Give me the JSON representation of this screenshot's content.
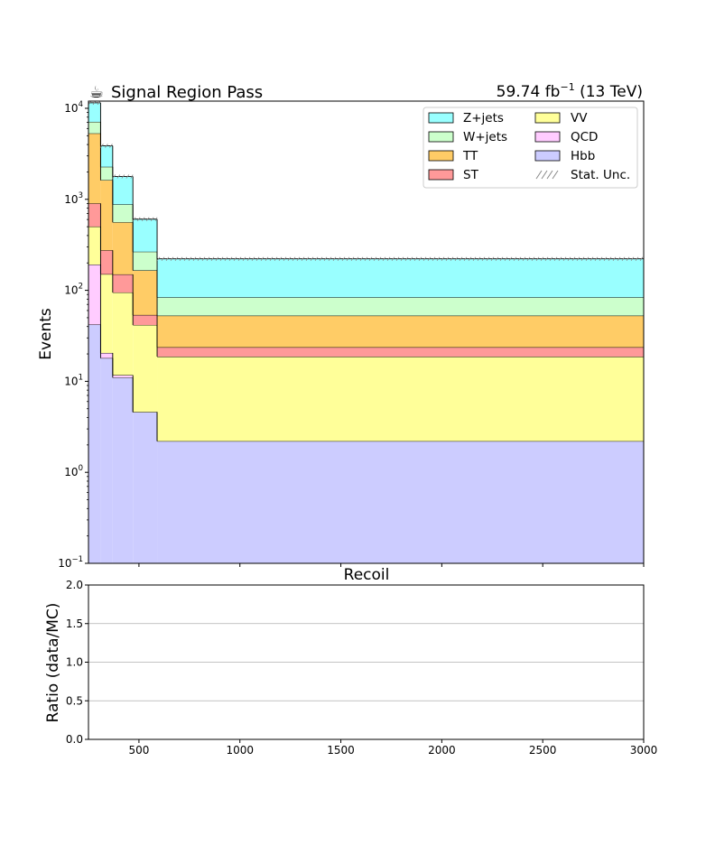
{
  "chart_data": [
    {
      "type": "area",
      "title": "Signal Region Pass",
      "lumi": {
        "value": "59.74 fb",
        "exp": "−1",
        "energy": "(13 TeV)"
      },
      "ylabel": "Events",
      "xlabel": "Recoil",
      "yscale": "log",
      "ylim": [
        0.1,
        12000
      ],
      "xlim": [
        250,
        3000
      ],
      "ytick_labels": [
        {
          "value": 0.1,
          "base": "10",
          "exp": "−1"
        },
        {
          "value": 1,
          "base": "10",
          "exp": "0"
        },
        {
          "value": 10,
          "base": "10",
          "exp": "1"
        },
        {
          "value": 100,
          "base": "10",
          "exp": "2"
        },
        {
          "value": 1000,
          "base": "10",
          "exp": "3"
        },
        {
          "value": 10000,
          "base": "10",
          "exp": "4"
        }
      ],
      "bin_edges": [
        250,
        310,
        370,
        470,
        590,
        3000
      ],
      "series": [
        {
          "name": "Hbb",
          "color": "#ccccff",
          "values": [
            42,
            18,
            11,
            4.6,
            2.2
          ]
        },
        {
          "name": "QCD",
          "color": "#ffccff",
          "values": [
            150,
            2.5,
            0.7,
            0.0,
            0.0
          ]
        },
        {
          "name": "VV",
          "color": "#ffff99",
          "values": [
            310,
            130,
            83,
            37,
            16.5
          ]
        },
        {
          "name": "ST",
          "color": "#ff9999",
          "values": [
            400,
            125,
            55,
            12,
            5
          ]
        },
        {
          "name": "TT",
          "color": "#ffcc66",
          "values": [
            4400,
            1350,
            410,
            112,
            29
          ]
        },
        {
          "name": "W+jets",
          "color": "#ccffcc",
          "values": [
            1800,
            650,
            320,
            100,
            31
          ]
        },
        {
          "name": "Z+jets",
          "color": "#99ffff",
          "values": [
            4400,
            1600,
            900,
            340,
            138
          ]
        }
      ],
      "legend": {
        "placement": "top-right",
        "columns": [
          [
            "Z+jets",
            "W+jets",
            "TT",
            "ST"
          ],
          [
            "VV",
            "QCD",
            "Hbb",
            "Stat. Unc."
          ]
        ],
        "stat_unc_label": "Stat. Unc."
      },
      "grid": false
    },
    {
      "type": "line",
      "ylabel": "Ratio (data/MC)",
      "ylim": [
        0.0,
        2.0
      ],
      "xlim": [
        250,
        3000
      ],
      "yticks": [
        "0.0",
        "0.5",
        "1.0",
        "1.5",
        "2.0"
      ],
      "xticks": [
        "500",
        "1000",
        "1500",
        "2000",
        "2500",
        "3000"
      ],
      "grid": "horizontal"
    }
  ]
}
